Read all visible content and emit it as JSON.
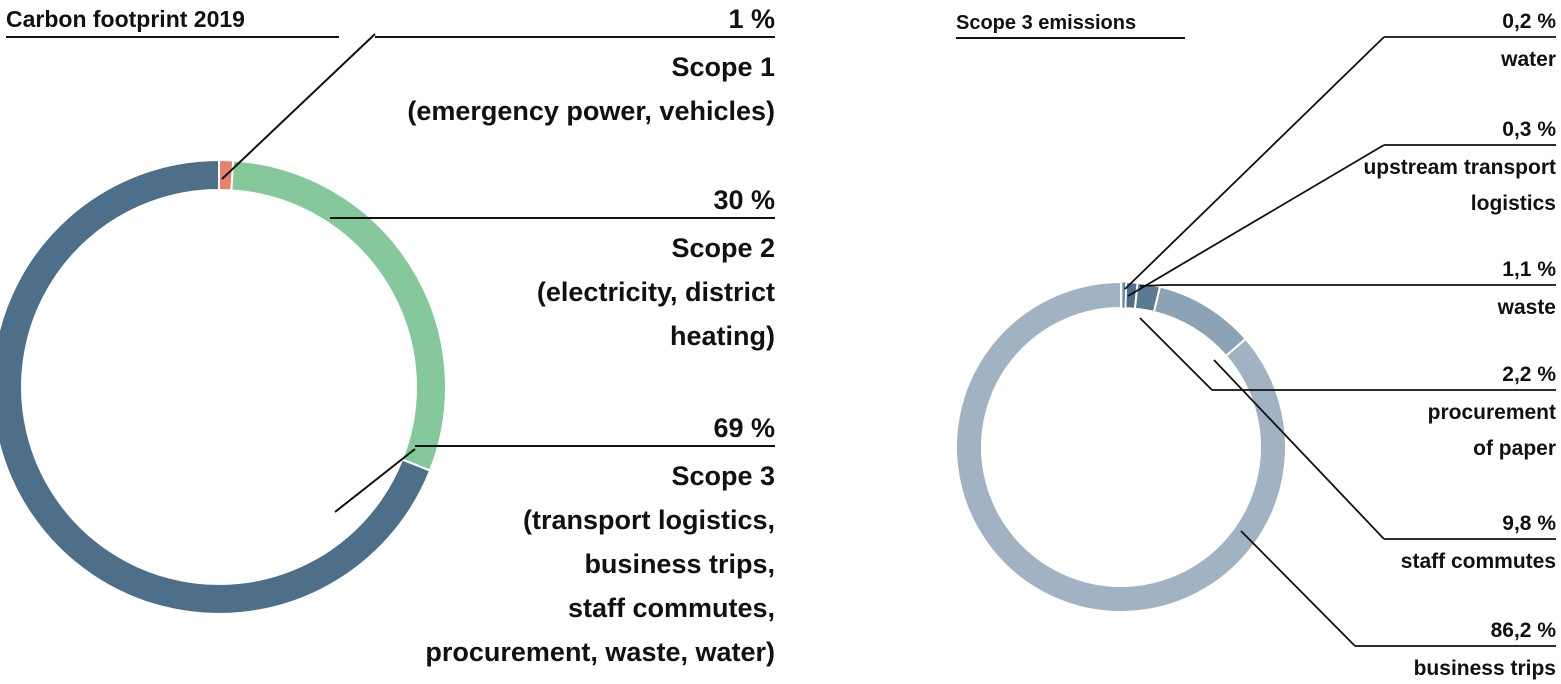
{
  "chart_data": [
    {
      "type": "pie",
      "title": "Carbon footprint 2019",
      "slices": [
        {
          "pct_label": "1 %",
          "value": 1,
          "lines": [
            "Scope 1",
            "(emergency power, vehicles)"
          ],
          "color": "#e8826e"
        },
        {
          "pct_label": "30 %",
          "value": 30,
          "lines": [
            "Scope 2",
            "(electricity, district",
            "heating)"
          ],
          "color": "#84c89c"
        },
        {
          "pct_label": "69 %",
          "value": 69,
          "lines": [
            "Scope 3",
            "(transport logistics,",
            "business trips,",
            "staff commutes,",
            "procurement, waste, water)"
          ],
          "color": "#4e6f89"
        }
      ]
    },
    {
      "type": "pie",
      "title": "Scope 3 emissions",
      "slices": [
        {
          "pct_label": "0,2 %",
          "value": 0.2,
          "lines": [
            "water"
          ],
          "color": "#4e6f89"
        },
        {
          "pct_label": "0,3 %",
          "value": 0.3,
          "lines": [
            "upstream transport",
            "logistics"
          ],
          "color": "#4e6f89"
        },
        {
          "pct_label": "1,1 %",
          "value": 1.1,
          "lines": [
            "waste"
          ],
          "color": "#4e6f89"
        },
        {
          "pct_label": "2,2 %",
          "value": 2.2,
          "lines": [
            "procurement",
            "of paper"
          ],
          "color": "#5b7b93"
        },
        {
          "pct_label": "9,8 %",
          "value": 9.8,
          "lines": [
            "staff commutes"
          ],
          "color": "#8ca2b5"
        },
        {
          "pct_label": "86,2 %",
          "value": 86.2,
          "lines": [
            "business trips"
          ],
          "color": "#a1b3c2"
        }
      ]
    }
  ]
}
